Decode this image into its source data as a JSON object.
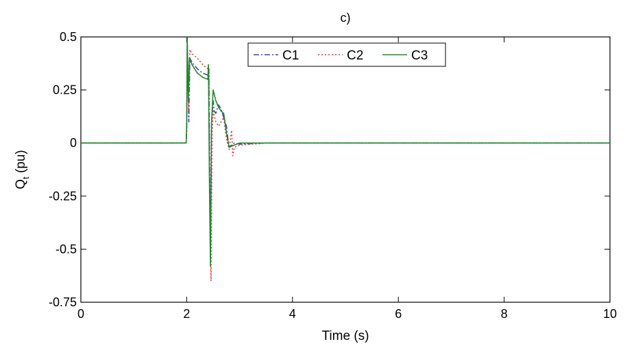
{
  "chart_data": {
    "type": "line",
    "title": "c)",
    "xlabel": "Time (s)",
    "ylabel_main": "Q",
    "ylabel_subscript": "t",
    "ylabel_suffix": " (pu)",
    "xlim": [
      0,
      10
    ],
    "ylim": [
      -0.75,
      0.5
    ],
    "xticks": [
      0,
      2,
      4,
      6,
      8,
      10
    ],
    "xtick_labels": [
      "0",
      "2",
      "4",
      "6",
      "8",
      "10"
    ],
    "yticks": [
      0.5,
      0.25,
      0,
      -0.25,
      -0.5,
      -0.75
    ],
    "ytick_labels": [
      "0.5",
      "0.25",
      "0",
      "-0.25",
      "-0.5",
      "-0.75"
    ],
    "grid": false,
    "legend_position": "top-center",
    "series": [
      {
        "name": "C1",
        "color": "#3b3bd6",
        "dash": "dashdot",
        "points": [
          [
            0,
            0
          ],
          [
            1.99,
            0
          ],
          [
            2.0,
            0.05
          ],
          [
            2.01,
            0.48
          ],
          [
            2.04,
            0.1
          ],
          [
            2.06,
            0.4
          ],
          [
            2.1,
            0.38
          ],
          [
            2.2,
            0.35
          ],
          [
            2.3,
            0.33
          ],
          [
            2.4,
            0.32
          ],
          [
            2.42,
            0.35
          ],
          [
            2.44,
            -0.3
          ],
          [
            2.45,
            -0.5
          ],
          [
            2.47,
            0.1
          ],
          [
            2.5,
            0.2
          ],
          [
            2.52,
            0.15
          ],
          [
            2.55,
            0.14
          ],
          [
            2.6,
            0.18
          ],
          [
            2.65,
            0.16
          ],
          [
            2.7,
            0.12
          ],
          [
            2.75,
            0.08
          ],
          [
            2.8,
            -0.02
          ],
          [
            2.85,
            -0.01
          ],
          [
            2.9,
            0
          ],
          [
            3.0,
            -0.005
          ],
          [
            3.5,
            0
          ],
          [
            10,
            0
          ]
        ]
      },
      {
        "name": "C2",
        "color": "#e8352d",
        "dash": "dotted",
        "points": [
          [
            0,
            0
          ],
          [
            1.99,
            0
          ],
          [
            2.0,
            0.05
          ],
          [
            2.01,
            0.46
          ],
          [
            2.04,
            0.15
          ],
          [
            2.06,
            0.44
          ],
          [
            2.1,
            0.42
          ],
          [
            2.2,
            0.4
          ],
          [
            2.3,
            0.37
          ],
          [
            2.4,
            0.35
          ],
          [
            2.42,
            0.33
          ],
          [
            2.44,
            -0.45
          ],
          [
            2.46,
            -0.65
          ],
          [
            2.48,
            0.05
          ],
          [
            2.5,
            0.15
          ],
          [
            2.55,
            0.1
          ],
          [
            2.6,
            0.08
          ],
          [
            2.65,
            0.1
          ],
          [
            2.7,
            0.12
          ],
          [
            2.75,
            0.02
          ],
          [
            2.8,
            -0.03
          ],
          [
            2.85,
            0.06
          ],
          [
            2.87,
            -0.06
          ],
          [
            2.9,
            -0.02
          ],
          [
            3.0,
            -0.01
          ],
          [
            3.5,
            0
          ],
          [
            10,
            0
          ]
        ]
      },
      {
        "name": "C3",
        "color": "#1f8a2a",
        "dash": "solid",
        "points": [
          [
            0,
            0
          ],
          [
            1.99,
            0
          ],
          [
            2.0,
            0.1
          ],
          [
            2.01,
            0.5
          ],
          [
            2.03,
            0.2
          ],
          [
            2.05,
            0.4
          ],
          [
            2.1,
            0.37
          ],
          [
            2.2,
            0.33
          ],
          [
            2.3,
            0.31
          ],
          [
            2.4,
            0.3
          ],
          [
            2.41,
            0.37
          ],
          [
            2.43,
            -0.2
          ],
          [
            2.45,
            -0.58
          ],
          [
            2.47,
            0.1
          ],
          [
            2.5,
            0.25
          ],
          [
            2.55,
            0.2
          ],
          [
            2.6,
            0.17
          ],
          [
            2.65,
            0.15
          ],
          [
            2.7,
            0.14
          ],
          [
            2.75,
            0.05
          ],
          [
            2.8,
            -0.02
          ],
          [
            2.9,
            -0.01
          ],
          [
            3.0,
            0
          ],
          [
            3.5,
            0
          ],
          [
            10,
            0
          ]
        ]
      }
    ]
  }
}
